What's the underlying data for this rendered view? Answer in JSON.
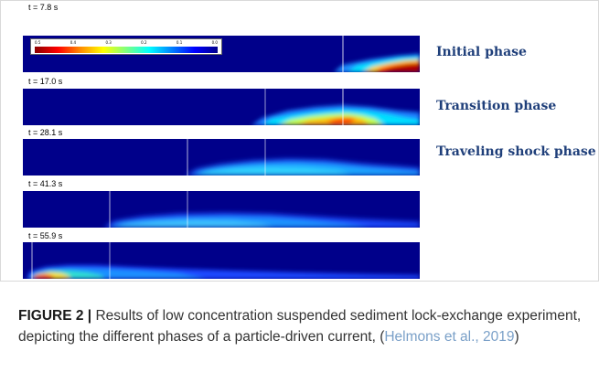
{
  "figure": {
    "panels": [
      {
        "time": "t = 7.8 s"
      },
      {
        "time": "t = 17.0 s"
      },
      {
        "time": "t = 28.1 s"
      },
      {
        "time": "t = 41.3 s"
      },
      {
        "time": "t = 55.9 s"
      }
    ],
    "phases": [
      "Initial phase",
      "Transition phase",
      "Traveling shock phase"
    ],
    "colorbar_ticks": [
      "0.5",
      "0.4",
      "0.3",
      "0.2",
      "0.1",
      "0.0"
    ]
  },
  "caption": {
    "label": "FIGURE 2 |",
    "text": " Results of low concentration suspended sediment lock-exchange experiment, depicting the different phases of a particle-driven current, (",
    "citation": "Helmons et al., 2019",
    "close": ")"
  }
}
